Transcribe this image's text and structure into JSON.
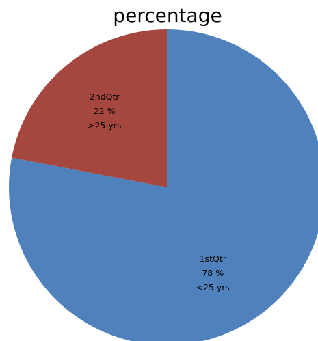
{
  "chart_data": {
    "type": "pie",
    "title": "percentage",
    "start_angle_deg": 0,
    "direction": "clockwise",
    "slices": [
      {
        "category": "1stQtr",
        "value": 78,
        "value_label": "78 %",
        "group": "<25 yrs",
        "color": "#4f81bd"
      },
      {
        "category": "2ndQtr",
        "value": 22,
        "value_label": "22 %",
        "group": ">25 yrs",
        "color": "#a5463f"
      }
    ]
  }
}
